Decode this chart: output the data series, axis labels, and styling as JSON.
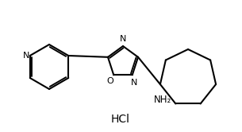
{
  "background_color": "#ffffff",
  "line_color": "#000000",
  "line_width": 1.5,
  "text_color": "#000000",
  "hcl_text": "HCl",
  "nh2_text": "NH₂",
  "n_text": "N",
  "o_text": "O",
  "figsize": [
    3.05,
    1.66
  ],
  "dpi": 100
}
